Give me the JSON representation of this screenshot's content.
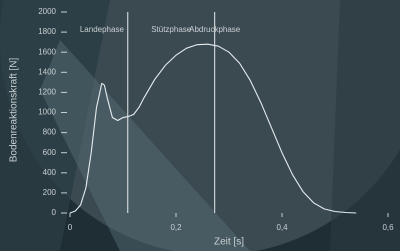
{
  "chart_data": {
    "type": "line",
    "y_label": "Bodenreaktionskraft [N]",
    "x_label": "Zeit [s]",
    "phases": [
      "Landephase",
      "Stützphase",
      "Abdruckphase"
    ],
    "phase_boundaries": [
      0.109,
      0.273
    ],
    "color": "#e6ecee",
    "x": [
      0,
      0.01,
      0.02,
      0.03,
      0.04,
      0.05,
      0.06,
      0.065,
      0.07,
      0.08,
      0.09,
      0.1,
      0.11,
      0.12,
      0.13,
      0.14,
      0.16,
      0.18,
      0.2,
      0.22,
      0.24,
      0.26,
      0.28,
      0.3,
      0.32,
      0.34,
      0.36,
      0.38,
      0.4,
      0.42,
      0.44,
      0.46,
      0.48,
      0.5,
      0.52,
      0.54
    ],
    "values": [
      0,
      20,
      80,
      250,
      600,
      1050,
      1290,
      1270,
      1150,
      950,
      920,
      950,
      960,
      980,
      1050,
      1150,
      1330,
      1470,
      1570,
      1640,
      1675,
      1680,
      1660,
      1600,
      1490,
      1320,
      1100,
      850,
      600,
      380,
      210,
      100,
      40,
      15,
      5,
      0
    ],
    "xlim": [
      0,
      0.6
    ],
    "xticks": [
      0,
      {
        "value": 0.2,
        "label": "0,2"
      },
      {
        "value": 0.4,
        "label": "0,4"
      },
      {
        "value": 0.6,
        "label": "0,6"
      }
    ],
    "ylim": [
      0,
      2000
    ],
    "yticks": [
      0,
      200,
      400,
      600,
      800,
      1000,
      1200,
      1400,
      1600,
      1800,
      2000
    ]
  }
}
